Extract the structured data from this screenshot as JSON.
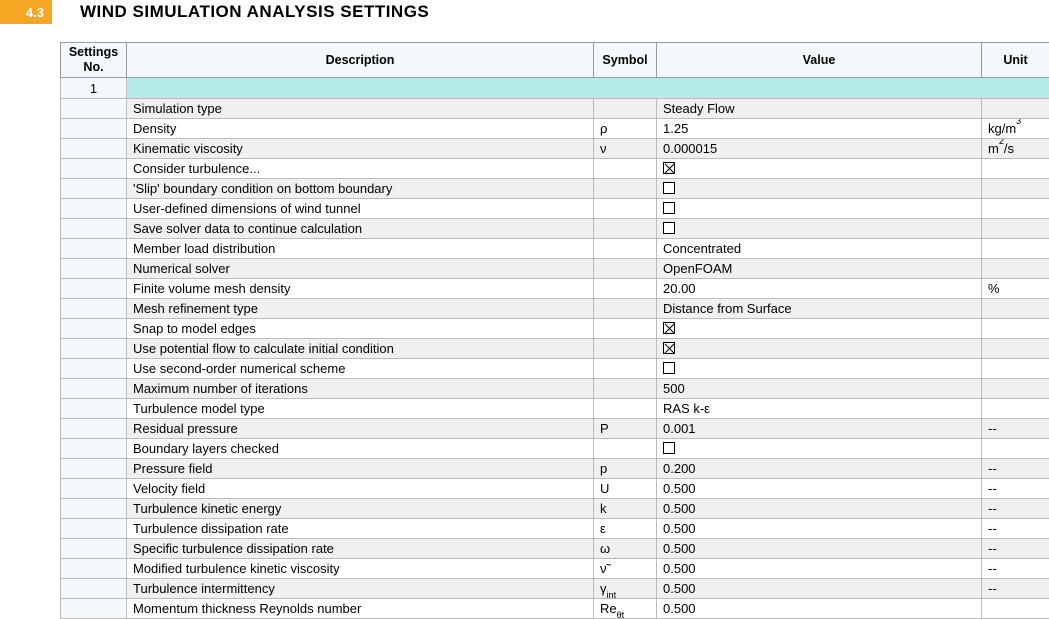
{
  "header": {
    "section_number": "4.3",
    "title": "WIND SIMULATION ANALYSIS SETTINGS"
  },
  "columns": {
    "no": "Settings\nNo.",
    "desc": "Description",
    "sym": "Symbol",
    "val": "Value",
    "unit": "Unit"
  },
  "first_row_no": "1",
  "rows": [
    {
      "desc": "Simulation type",
      "sym": "",
      "val_text": "Steady Flow",
      "unit": ""
    },
    {
      "desc": "Density",
      "sym": "ρ",
      "val_text": "1.25",
      "unit_html": "kg/m<sup>3</sup>"
    },
    {
      "desc": "Kinematic viscosity",
      "sym": "ν",
      "val_text": "0.000015",
      "unit_html": "m<sup>2</sup>/s"
    },
    {
      "desc": "Consider turbulence...",
      "sym": "",
      "val_check": true,
      "unit": ""
    },
    {
      "desc": "'Slip' boundary condition on bottom boundary",
      "sym": "",
      "val_check": false,
      "unit": ""
    },
    {
      "desc": "User-defined dimensions of wind tunnel",
      "sym": "",
      "val_check": false,
      "unit": ""
    },
    {
      "desc": "Save solver data to continue calculation",
      "sym": "",
      "val_check": false,
      "unit": ""
    },
    {
      "desc": "Member load distribution",
      "sym": "",
      "val_text": "Concentrated",
      "unit": ""
    },
    {
      "desc": "Numerical solver",
      "sym": "",
      "val_text": "OpenFOAM",
      "unit": ""
    },
    {
      "desc": "Finite volume mesh density",
      "sym": "",
      "val_text": "20.00",
      "unit": "%"
    },
    {
      "desc": "Mesh refinement type",
      "sym": "",
      "val_text": "Distance from Surface",
      "unit": ""
    },
    {
      "desc": "Snap to model edges",
      "sym": "",
      "val_check": true,
      "unit": ""
    },
    {
      "desc": "Use potential flow to calculate initial condition",
      "sym": "",
      "val_check": true,
      "unit": ""
    },
    {
      "desc": "Use second-order numerical scheme",
      "sym": "",
      "val_check": false,
      "unit": ""
    },
    {
      "desc": "Maximum number of iterations",
      "sym": "",
      "val_text": "500",
      "unit": ""
    },
    {
      "desc": "Turbulence model type",
      "sym": "",
      "val_text": "RAS k-ε",
      "unit": ""
    },
    {
      "desc": "Residual pressure",
      "sym": "P",
      "val_text": "0.001",
      "unit": "--"
    },
    {
      "desc": "Boundary layers checked",
      "sym": "",
      "val_check": false,
      "unit": ""
    },
    {
      "desc": "Pressure field",
      "sym": "p",
      "val_text": "0.200",
      "unit": "--"
    },
    {
      "desc": "Velocity field",
      "sym": "U",
      "val_text": "0.500",
      "unit": "--"
    },
    {
      "desc": "Turbulence kinetic energy",
      "sym": "k",
      "val_text": "0.500",
      "unit": "--"
    },
    {
      "desc": "Turbulence dissipation rate",
      "sym": "ε",
      "val_text": "0.500",
      "unit": "--"
    },
    {
      "desc": "Specific turbulence dissipation rate",
      "sym": "ω",
      "val_text": "0.500",
      "unit": "--"
    },
    {
      "desc": "Modified turbulence kinetic viscosity",
      "sym": "ν̃",
      "val_text": "0.500",
      "unit": "--"
    },
    {
      "desc": "Turbulence intermittency",
      "sym_html": "γ<sub>int</sub>",
      "val_text": "0.500",
      "unit": "--"
    },
    {
      "desc": "Momentum thickness Reynolds number",
      "sym_html": "Re<sub>θt</sub>",
      "val_text": "0.500",
      "unit": ""
    }
  ]
}
